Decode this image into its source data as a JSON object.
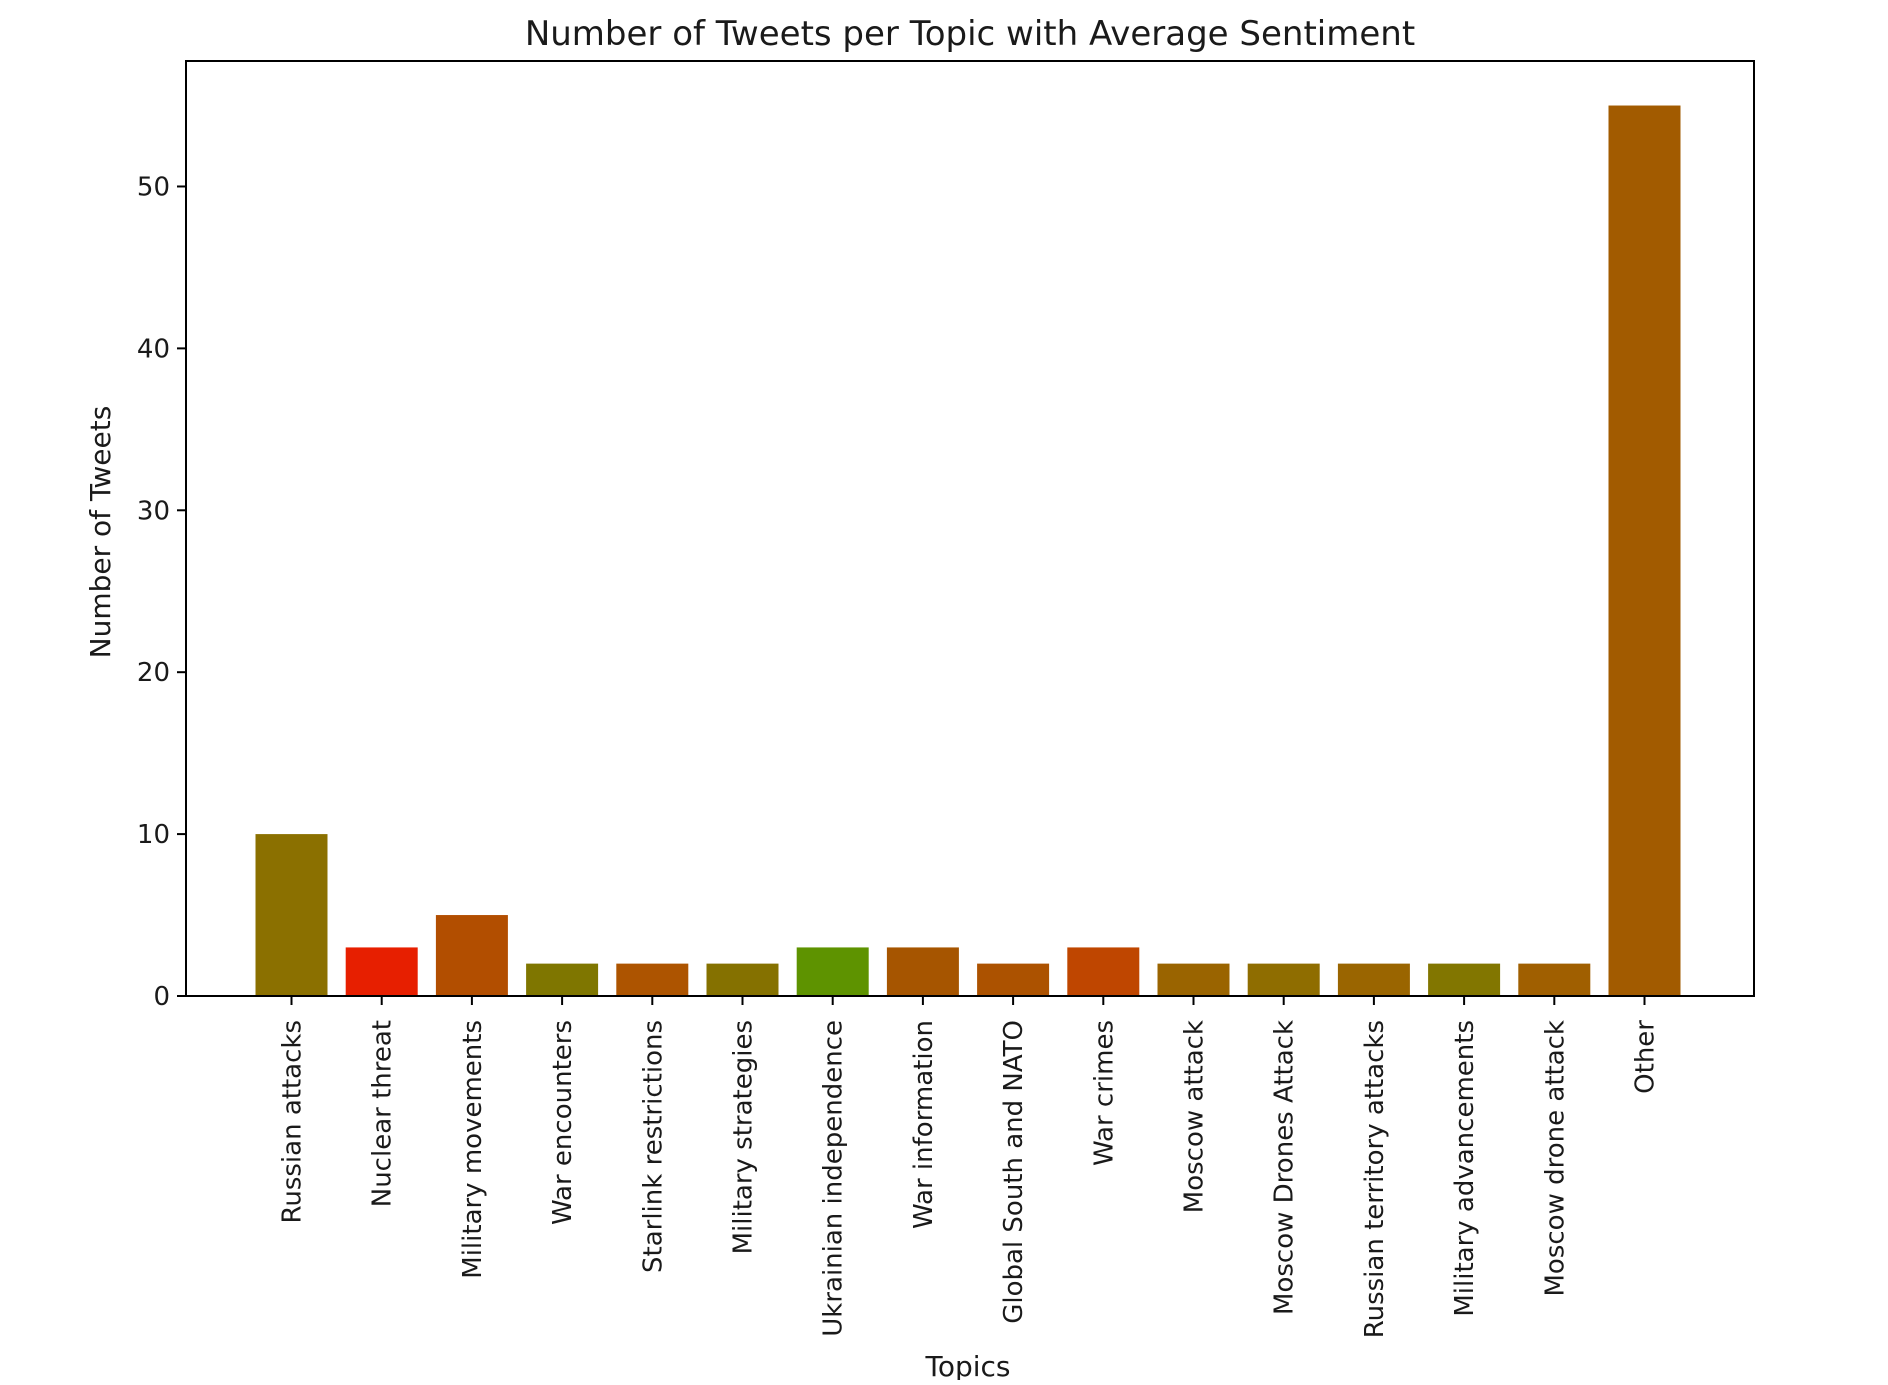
{
  "chart_data": {
    "type": "bar",
    "title": "Number of Tweets per Topic with Average Sentiment",
    "xlabel": "Topics",
    "ylabel": "Number of Tweets",
    "ylim": [
      0,
      57.75
    ],
    "yticks": [
      0,
      10,
      20,
      30,
      40,
      50
    ],
    "grid": false,
    "categories": [
      "Russian attacks",
      "Nuclear threat",
      "Military movements",
      "War encounters",
      "Starlink restrictions",
      "Military strategies",
      "Ukrainian independence",
      "War information",
      "Global South and NATO",
      "War crimes",
      "Moscow attack",
      "Moscow Drones Attack",
      "Russian territory attacks",
      "Military advancements",
      "Moscow drone attack",
      "Other"
    ],
    "values": [
      10,
      3,
      5,
      2,
      2,
      2,
      3,
      3,
      2,
      3,
      2,
      2,
      2,
      2,
      2,
      55
    ],
    "colors": [
      "#8b7000",
      "#e71f00",
      "#b24e00",
      "#7f7600",
      "#ad5400",
      "#857100",
      "#5e9300",
      "#a65500",
      "#ac5200",
      "#bf4600",
      "#9a6400",
      "#8f6d00",
      "#9a6500",
      "#827600",
      "#a05f00",
      "#a25b00"
    ]
  }
}
